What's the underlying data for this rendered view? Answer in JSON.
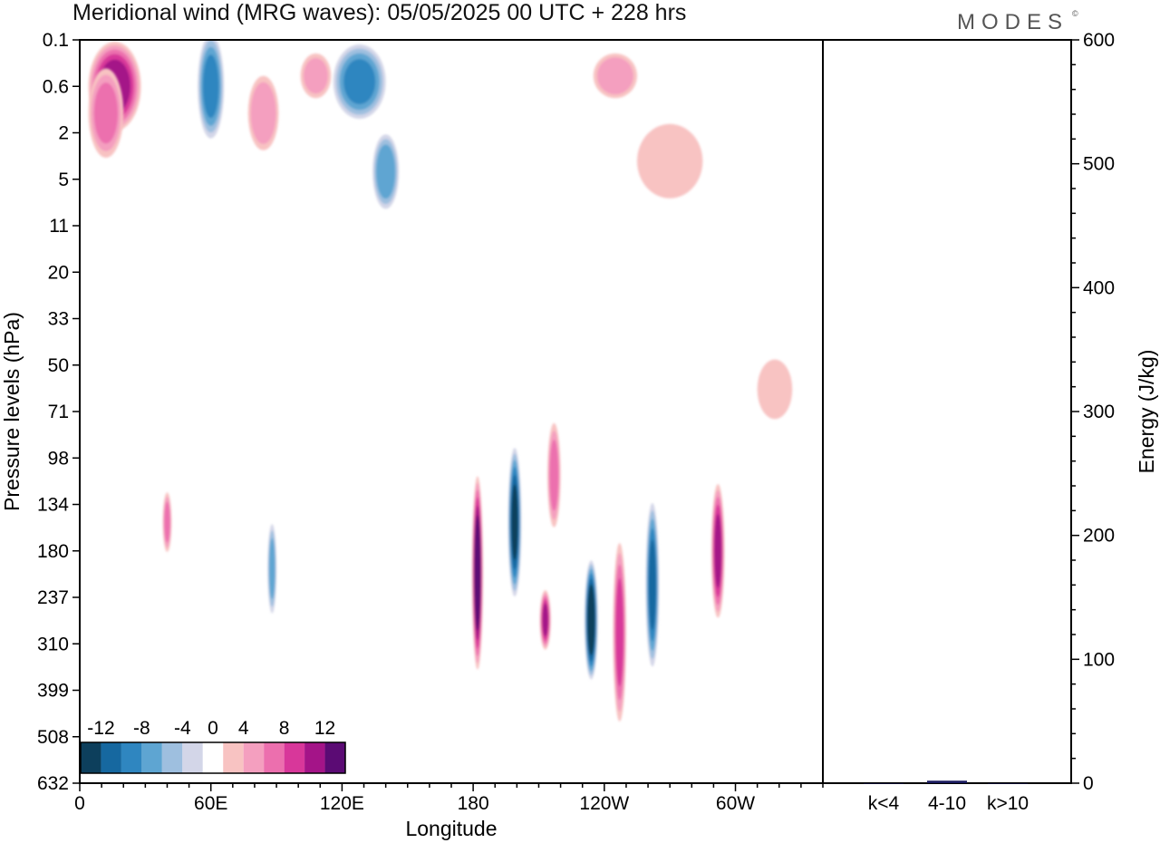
{
  "chart_data": {
    "title": "Meridional wind (MRG waves):  05/05/2025  00 UTC  + 228 hrs",
    "brand": "MODES",
    "brand_mark": "©",
    "panels": [
      {
        "name": "main",
        "type": "heatmap",
        "xlabel": "Longitude",
        "ylabel": "Pressure levels (hPa)",
        "x_ticks": [
          "0",
          "60E",
          "120E",
          "180",
          "120W",
          "60W"
        ],
        "x_tick_degrees": [
          0,
          60,
          120,
          180,
          240,
          300
        ],
        "xlim": [
          0,
          340
        ],
        "y_ticks": [
          "0.1",
          "0.6",
          "2",
          "5",
          "11",
          "20",
          "33",
          "50",
          "71",
          "98",
          "134",
          "180",
          "237",
          "310",
          "399",
          "508",
          "632"
        ],
        "grid": false,
        "colorbar": {
          "placement": "bottom-left",
          "tick_labels": [
            "-12",
            "-8",
            "-4",
            "0",
            "4",
            "8",
            "12"
          ],
          "bounds": [
            -14,
            -12,
            -10,
            -8,
            -6,
            -4,
            -2,
            2,
            4,
            6,
            8,
            10,
            12,
            14
          ],
          "colors": [
            "#0d3f5c",
            "#1668a0",
            "#2f86c0",
            "#5ea5d2",
            "#9ebfdf",
            "#d3d6e8",
            "#ffffff",
            "#f8c3c2",
            "#f49fbf",
            "#ec6fae",
            "#d8379a",
            "#a41488",
            "#5b0b74"
          ]
        },
        "features": [
          {
            "lon": 16,
            "level": 0.6,
            "value": 11,
            "wide": 24,
            "tall": 0.6
          },
          {
            "lon": 12,
            "level": 1.2,
            "value": 6,
            "wide": 16,
            "tall": 0.6
          },
          {
            "lon": 60,
            "level": 0.6,
            "value": -8,
            "wide": 12,
            "tall": 0.7
          },
          {
            "lon": 128,
            "level": 0.5,
            "value": -8,
            "wide": 24,
            "tall": 0.5
          },
          {
            "lon": 108,
            "level": 0.4,
            "value": 4,
            "wide": 14,
            "tall": 0.3
          },
          {
            "lon": 84,
            "level": 1.2,
            "value": 5,
            "wide": 14,
            "tall": 0.5
          },
          {
            "lon": 140,
            "level": 4.3,
            "value": -7,
            "wide": 12,
            "tall": 0.5
          },
          {
            "lon": 245,
            "level": 0.4,
            "value": 5,
            "wide": 20,
            "tall": 0.3
          },
          {
            "lon": 270,
            "level": 3.5,
            "value": 3,
            "wide": 30,
            "tall": 0.5
          },
          {
            "lon": 182,
            "level": 205,
            "value": 14,
            "wide": 5,
            "tall": 1.3
          },
          {
            "lon": 199,
            "level": 150,
            "value": -12,
            "wide": 6,
            "tall": 1.0
          },
          {
            "lon": 213,
            "level": 270,
            "value": 10,
            "wide": 5,
            "tall": 0.4
          },
          {
            "lon": 217,
            "level": 110,
            "value": 6,
            "wide": 6,
            "tall": 0.7
          },
          {
            "lon": 234,
            "level": 270,
            "value": -14,
            "wide": 6,
            "tall": 0.8
          },
          {
            "lon": 247,
            "level": 290,
            "value": 8,
            "wide": 6,
            "tall": 1.2
          },
          {
            "lon": 262,
            "level": 220,
            "value": -10,
            "wide": 6,
            "tall": 1.1
          },
          {
            "lon": 292,
            "level": 180,
            "value": 10,
            "wide": 6,
            "tall": 0.9
          },
          {
            "lon": 40,
            "level": 150,
            "value": 6,
            "wide": 4,
            "tall": 0.4
          },
          {
            "lon": 88,
            "level": 200,
            "value": -6,
            "wide": 4,
            "tall": 0.6
          },
          {
            "lon": 318,
            "level": 60,
            "value": 3,
            "wide": 16,
            "tall": 0.4
          }
        ]
      },
      {
        "name": "energy",
        "type": "bar",
        "ylabel": "Energy (J/kg)",
        "categories": [
          "k<4",
          "4-10",
          "k>10"
        ],
        "values": [
          0,
          2,
          0
        ],
        "ylim": [
          0,
          600
        ],
        "y_ticks": [
          0,
          100,
          200,
          300,
          400,
          500,
          600
        ],
        "colors": [
          "#1a1a5e",
          "#1a1a5e",
          "#1a1a5e"
        ]
      }
    ]
  }
}
